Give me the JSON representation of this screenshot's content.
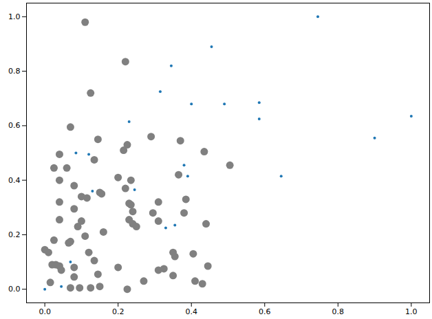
{
  "chart_data": {
    "type": "scatter",
    "xlim": [
      -0.05,
      1.05
    ],
    "ylim": [
      -0.05,
      1.05
    ],
    "xticks": [
      {
        "value": 0,
        "label": "0.0"
      },
      {
        "value": 0.2,
        "label": "0.2"
      },
      {
        "value": 0.4,
        "label": "0.4"
      },
      {
        "value": 0.6,
        "label": "0.6"
      },
      {
        "value": 0.8,
        "label": "0.8"
      },
      {
        "value": 1,
        "label": "1.0"
      }
    ],
    "yticks": [
      {
        "value": 0,
        "label": "0.0"
      },
      {
        "value": 0.2,
        "label": "0.2"
      },
      {
        "value": 0.4,
        "label": "0.4"
      },
      {
        "value": 0.6,
        "label": "0.6"
      },
      {
        "value": 0.8,
        "label": "0.8"
      },
      {
        "value": 1,
        "label": "1.0"
      }
    ],
    "grid": false,
    "series": [
      {
        "color": "#808080",
        "marker": "large",
        "x": [
          0.11,
          0.22,
          0.125,
          0.07,
          0.145,
          0.225,
          0.215,
          0.29,
          0.37,
          0.435,
          0.505,
          0.04,
          0.06,
          0.025,
          0.135,
          0.04,
          0.08,
          0.2,
          0.235,
          0.365,
          0.22,
          0.15,
          0.155,
          0.1,
          0.115,
          0.04,
          0.08,
          0.235,
          0.23,
          0.31,
          0.385,
          0.24,
          0.38,
          0.295,
          0.04,
          0.1,
          0.09,
          0.23,
          0.24,
          0.25,
          0.31,
          0.44,
          0.16,
          0.11,
          0.065,
          0.07,
          0.12,
          0.025,
          0.0,
          0.01,
          0.35,
          0.355,
          0.405,
          0.135,
          0.08,
          0.03,
          0.02,
          0.04,
          0.045,
          0.2,
          0.31,
          0.325,
          0.445,
          0.08,
          0.145,
          0.35,
          0.015,
          0.27,
          0.41,
          0.43,
          0.07,
          0.095,
          0.125,
          0.15,
          0.225
        ],
        "y": [
          0.98,
          0.835,
          0.72,
          0.595,
          0.55,
          0.53,
          0.51,
          0.56,
          0.545,
          0.505,
          0.455,
          0.495,
          0.445,
          0.445,
          0.475,
          0.4,
          0.38,
          0.41,
          0.4,
          0.42,
          0.37,
          0.355,
          0.35,
          0.34,
          0.335,
          0.32,
          0.295,
          0.31,
          0.315,
          0.32,
          0.33,
          0.285,
          0.28,
          0.28,
          0.255,
          0.25,
          0.23,
          0.255,
          0.24,
          0.23,
          0.25,
          0.24,
          0.21,
          0.195,
          0.17,
          0.175,
          0.135,
          0.18,
          0.145,
          0.135,
          0.135,
          0.12,
          0.13,
          0.105,
          0.08,
          0.09,
          0.09,
          0.085,
          0.07,
          0.08,
          0.07,
          0.075,
          0.085,
          0.045,
          0.055,
          0.05,
          0.025,
          0.03,
          0.03,
          0.02,
          0.005,
          0.005,
          0.005,
          0.01,
          0.0
        ]
      },
      {
        "color": "#1f77b4",
        "marker": "small",
        "x": [
          0.745,
          0.455,
          0.345,
          0.315,
          0.23,
          0.4,
          0.49,
          0.585,
          0.585,
          1.0,
          0.9,
          0.645,
          0.085,
          0.12,
          0.38,
          0.39,
          0.245,
          0.13,
          0.355,
          0.33,
          0.07,
          0.045,
          0.0
        ],
        "y": [
          1.0,
          0.89,
          0.82,
          0.725,
          0.615,
          0.68,
          0.68,
          0.685,
          0.625,
          0.635,
          0.555,
          0.415,
          0.5,
          0.495,
          0.455,
          0.415,
          0.365,
          0.36,
          0.235,
          0.225,
          0.1,
          0.01,
          0.0
        ]
      }
    ]
  }
}
